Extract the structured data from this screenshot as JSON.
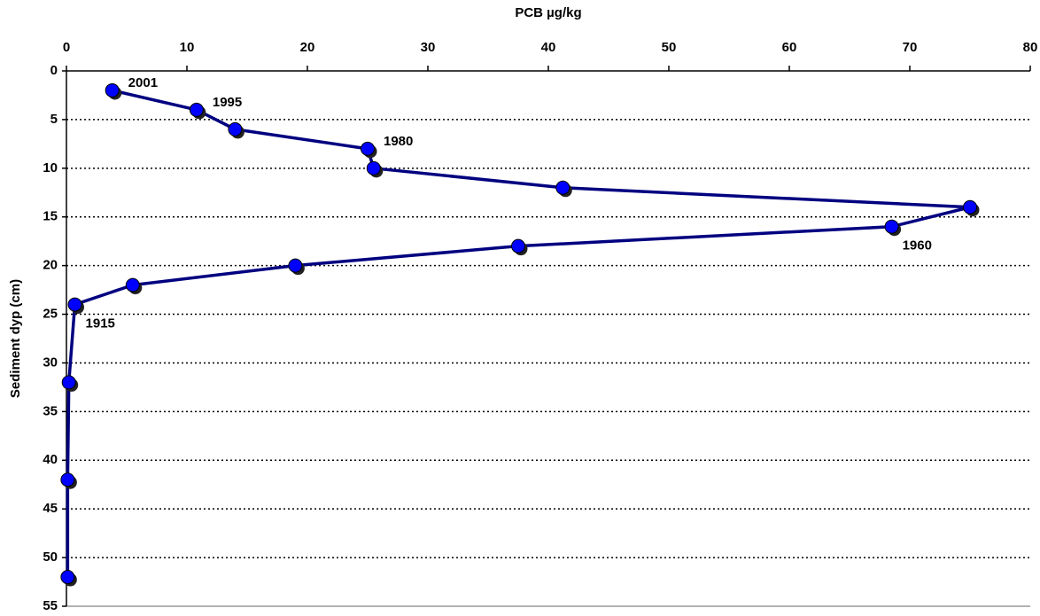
{
  "chart_data": {
    "type": "line",
    "x_label": "PCB µg/kg",
    "y_label": "Sediment dyp (cm)",
    "xlim": [
      0,
      80
    ],
    "ylim": [
      0,
      55
    ],
    "xticks": [
      0,
      10,
      20,
      30,
      40,
      50,
      60,
      70,
      80
    ],
    "yticks": [
      0,
      5,
      10,
      15,
      20,
      25,
      30,
      35,
      40,
      45,
      50,
      55
    ],
    "x_axis_position": "top",
    "y_inverted": true,
    "grid": true,
    "series": [
      {
        "color": "#000080",
        "marker_color": "#0000ff",
        "x": [
          3.8,
          10.8,
          14,
          25,
          25.5,
          41.2,
          75,
          68.5,
          37.5,
          19,
          5.5,
          0.7,
          0.2,
          0.1,
          0.1
        ],
        "y": [
          2,
          4,
          6,
          8,
          10,
          12,
          14,
          16,
          18,
          20,
          22,
          24,
          32,
          42,
          52
        ],
        "labels": [
          "2001",
          "1995",
          null,
          "1980",
          null,
          null,
          null,
          "1960",
          null,
          null,
          null,
          "1915",
          null,
          null,
          null
        ]
      }
    ]
  }
}
